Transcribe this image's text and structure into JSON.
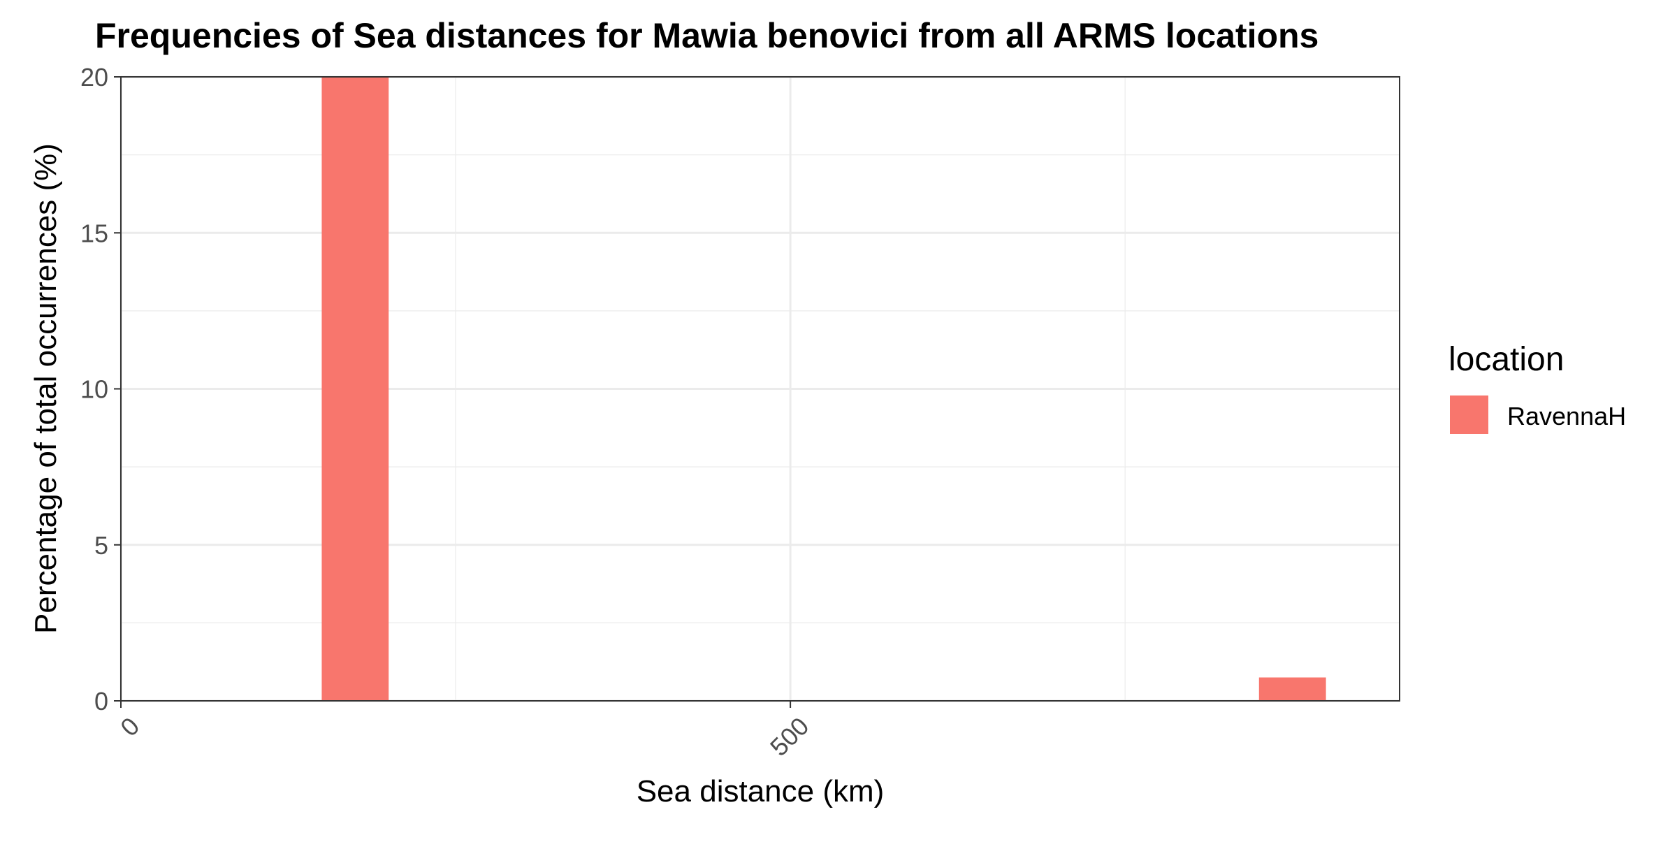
{
  "chart_data": {
    "type": "bar",
    "title": "Frequencies of Sea distances for Mawia benovici from all ARMS locations",
    "xlabel": "Sea distance (km)",
    "ylabel": "Percentage of total occurrences (%)",
    "xlim": [
      0,
      955
    ],
    "ylim": [
      0,
      20
    ],
    "x_ticks": [
      {
        "value": 0,
        "label": "0"
      },
      {
        "value": 500,
        "label": "500"
      }
    ],
    "x_minor_grid": [
      250,
      750
    ],
    "y_ticks": [
      {
        "value": 0,
        "label": "0"
      },
      {
        "value": 5,
        "label": "5"
      },
      {
        "value": 10,
        "label": "10"
      },
      {
        "value": 15,
        "label": "15"
      },
      {
        "value": 20,
        "label": "20"
      }
    ],
    "y_minor_grid": [
      2.5,
      7.5,
      12.5,
      17.5
    ],
    "grid": true,
    "bin_width": 50,
    "legend": {
      "title": "location",
      "placement": "right",
      "entries": [
        {
          "name": "RavennaH",
          "color": "#F8766D"
        }
      ]
    },
    "series": [
      {
        "name": "RavennaH",
        "color": "#F8766D",
        "bins": [
          {
            "x_start": 150,
            "x_end": 200,
            "value": 20
          },
          {
            "x_start": 850,
            "x_end": 900,
            "value": 0.75
          }
        ]
      }
    ]
  }
}
